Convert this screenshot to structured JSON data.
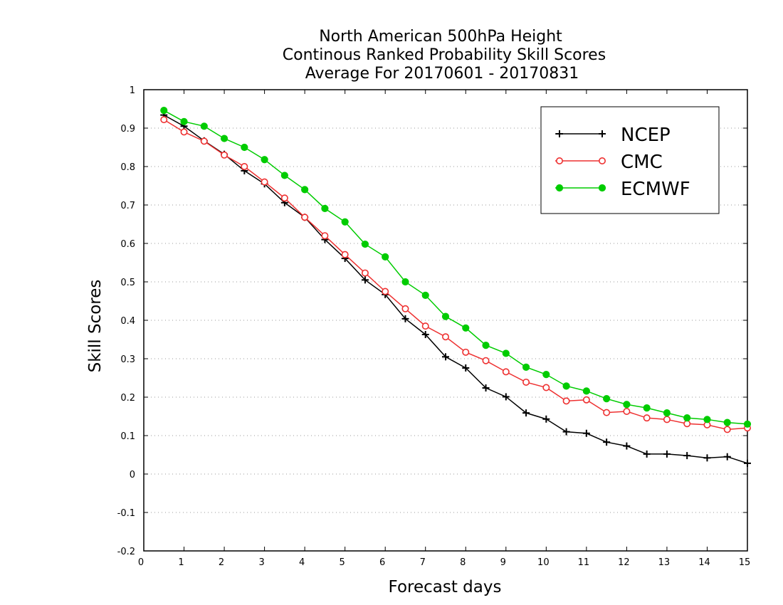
{
  "chart_data": {
    "type": "line",
    "title": [
      "North American 500hPa Height",
      "Continous Ranked Probability Skill Scores",
      "Average For 20170601 - 20170831"
    ],
    "xlabel": "Forecast days",
    "ylabel": "Skill Scores",
    "xlim": [
      0,
      15
    ],
    "ylim": [
      -0.2,
      1
    ],
    "xticks": [
      "0",
      "1",
      "2",
      "3",
      "4",
      "5",
      "6",
      "7",
      "8",
      "9",
      "10",
      "11",
      "12",
      "13",
      "14",
      "15"
    ],
    "yticks": [
      "-0.2",
      "-0.1",
      "0",
      "0.1",
      "0.2",
      "0.3",
      "0.4",
      "0.5",
      "0.6",
      "0.7",
      "0.8",
      "0.9",
      "1"
    ],
    "grid": "horizontal-dotted",
    "legend": "top-right",
    "x": [
      0.5,
      1,
      1.5,
      2,
      2.5,
      3,
      3.5,
      4,
      4.5,
      5,
      5.5,
      6,
      6.5,
      7,
      7.5,
      8,
      8.5,
      9,
      9.5,
      10,
      10.5,
      11,
      11.5,
      12,
      12.5,
      13,
      13.5,
      14,
      14.5,
      15
    ],
    "series": [
      {
        "name": "NCEP",
        "color": "#000000",
        "marker": "plus",
        "values": [
          0.934,
          0.905,
          0.867,
          0.832,
          0.789,
          0.755,
          0.706,
          0.668,
          0.61,
          0.561,
          0.505,
          0.467,
          0.404,
          0.363,
          0.305,
          0.276,
          0.224,
          0.201,
          0.159,
          0.143,
          0.11,
          0.106,
          0.083,
          0.073,
          0.052,
          0.052,
          0.048,
          0.042,
          0.045,
          0.028
        ]
      },
      {
        "name": "CMC",
        "color": "#ee3030",
        "marker": "open-circle",
        "values": [
          0.922,
          0.89,
          0.866,
          0.83,
          0.8,
          0.76,
          0.718,
          0.668,
          0.62,
          0.571,
          0.523,
          0.475,
          0.43,
          0.385,
          0.357,
          0.317,
          0.295,
          0.266,
          0.239,
          0.225,
          0.19,
          0.193,
          0.16,
          0.163,
          0.146,
          0.142,
          0.131,
          0.128,
          0.116,
          0.12
        ]
      },
      {
        "name": "ECMWF",
        "color": "#00cc00",
        "marker": "filled-circle",
        "values": [
          0.946,
          0.917,
          0.905,
          0.873,
          0.85,
          0.818,
          0.777,
          0.74,
          0.691,
          0.656,
          0.598,
          0.565,
          0.5,
          0.465,
          0.41,
          0.38,
          0.335,
          0.314,
          0.278,
          0.259,
          0.229,
          0.216,
          0.196,
          0.181,
          0.172,
          0.159,
          0.146,
          0.142,
          0.134,
          0.13
        ]
      }
    ]
  }
}
